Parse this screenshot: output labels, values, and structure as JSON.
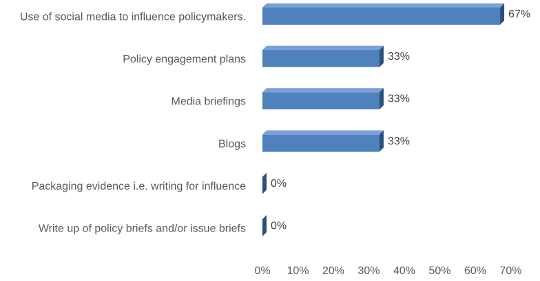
{
  "chart_data": {
    "type": "bar",
    "orientation": "horizontal",
    "style": "3d",
    "categories": [
      "Use of social media to influence policymakers.",
      "Policy engagement plans",
      "Media briefings",
      "Blogs",
      "Packaging evidence i.e. writing for influence",
      "Write up of policy briefs and/or issue briefs"
    ],
    "values": [
      67,
      33,
      33,
      33,
      0,
      0
    ],
    "data_labels": [
      "67%",
      "33%",
      "33%",
      "33%",
      "0%",
      "0%"
    ],
    "x_ticks": [
      "0%",
      "10%",
      "20%",
      "30%",
      "40%",
      "50%",
      "60%",
      "70%"
    ],
    "xlim": [
      0,
      70
    ],
    "value_unit": "%",
    "grid": false,
    "legend": "none",
    "colors": {
      "bar_front": "#4F81BD",
      "bar_top": "#7BA0D3",
      "bar_side": "#2C4F7C",
      "text": "#595959"
    }
  }
}
